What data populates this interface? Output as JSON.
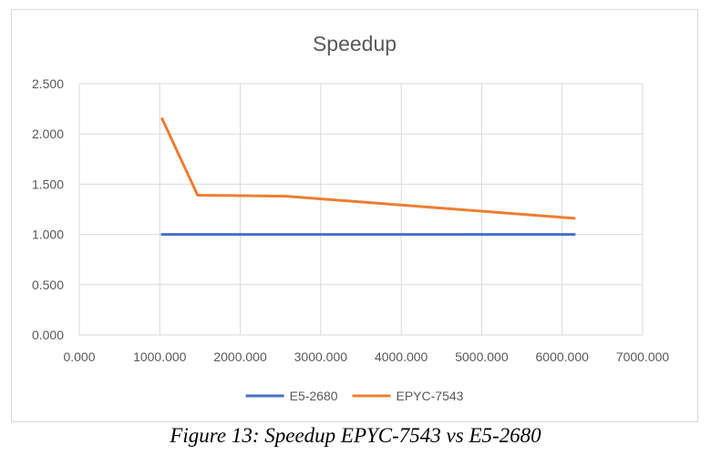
{
  "chart_data": {
    "type": "line",
    "title": "Speedup",
    "xlabel": "",
    "ylabel": "",
    "xlim": [
      0,
      7000
    ],
    "ylim": [
      0,
      2.5
    ],
    "x_ticks": [
      "0.000",
      "1000.000",
      "2000.000",
      "3000.000",
      "4000.000",
      "5000.000",
      "6000.000",
      "7000.000"
    ],
    "y_ticks": [
      "0.000",
      "0.500",
      "1.000",
      "1.500",
      "2.000",
      "2.500"
    ],
    "grid": true,
    "legend_position": "bottom",
    "series": [
      {
        "name": "E5-2680",
        "color": "#4472C4",
        "points": [
          [
            1030,
            1.0
          ],
          [
            1470,
            1.0
          ],
          [
            2570,
            1.0
          ],
          [
            6150,
            1.0
          ]
        ]
      },
      {
        "name": "EPYC-7543",
        "color": "#ED7D31",
        "points": [
          [
            1030,
            2.15
          ],
          [
            1470,
            1.39
          ],
          [
            2570,
            1.38
          ],
          [
            6150,
            1.16
          ]
        ]
      }
    ]
  },
  "caption": "Figure 13: Speedup EPYC-7543 vs E5-2680"
}
